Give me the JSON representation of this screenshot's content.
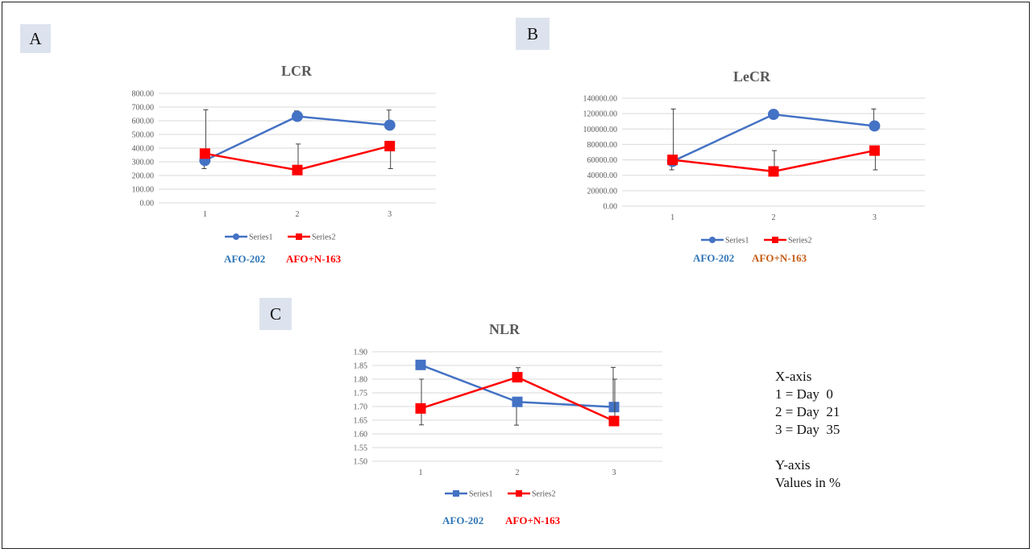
{
  "panels": [
    {
      "label": "A"
    },
    {
      "label": "B"
    },
    {
      "label": "C"
    }
  ],
  "captions": [
    {
      "series1": "AFO-202",
      "series2": "AFO+N-163"
    },
    {
      "series1": "AFO-202",
      "series2": "AFO+N-163"
    },
    {
      "series1": "AFO-202",
      "series2": "AFO+N-163"
    }
  ],
  "colors": {
    "series1": "#4472c4",
    "series2": "#ff0000",
    "caption_blue": "#2e75b6",
    "caption_red": "#ff0000",
    "caption_orange": "#c55a11",
    "grid": "#d9d9d9",
    "text": "#595959",
    "panel_bg": "#dde3ee"
  },
  "notes": {
    "x_title": "X-axis",
    "x1": "1 = Day  0",
    "x2": "2 = Day  21",
    "x3": "3 = Day  35",
    "y_title": "Y-axis",
    "y_desc": "Values in %"
  },
  "chart_data": [
    {
      "type": "line",
      "title": "LCR",
      "categories": [
        "1",
        "2",
        "3"
      ],
      "ylim": [
        0,
        800
      ],
      "yticks": [
        "0.00",
        "100.00",
        "200.00",
        "300.00",
        "400.00",
        "500.00",
        "600.00",
        "700.00",
        "800.00"
      ],
      "grid": true,
      "legend": "bottom",
      "series": [
        {
          "name": "Series1",
          "marker": "circle",
          "values": [
            310,
            632,
            568
          ],
          "err_low": [
            60,
            0,
            0
          ],
          "err_high": [
            0,
            40,
            110
          ]
        },
        {
          "name": "Series2",
          "marker": "square",
          "values": [
            360,
            240,
            415
          ],
          "err_low": [
            0,
            0,
            165
          ],
          "err_high": [
            320,
            190,
            0
          ]
        }
      ]
    },
    {
      "type": "line",
      "title": "LeCR",
      "categories": [
        "1",
        "2",
        "3"
      ],
      "ylim": [
        0,
        140000
      ],
      "yticks": [
        "0.00",
        "20000.00",
        "40000.00",
        "60000.00",
        "80000.00",
        "100000.00",
        "120000.00",
        "140000.00"
      ],
      "grid": true,
      "legend": "bottom",
      "series": [
        {
          "name": "Series1",
          "marker": "circle",
          "values": [
            58000,
            119000,
            104000
          ],
          "err_low": [
            11000,
            0,
            0
          ],
          "err_high": [
            0,
            0,
            22000
          ]
        },
        {
          "name": "Series2",
          "marker": "square",
          "values": [
            60000,
            45000,
            72000
          ],
          "err_low": [
            0,
            0,
            25000
          ],
          "err_high": [
            66000,
            27000,
            0
          ]
        }
      ]
    },
    {
      "type": "line",
      "title": "NLR",
      "categories": [
        "1",
        "2",
        "3"
      ],
      "ylim": [
        1.5,
        1.9
      ],
      "yticks": [
        "1.50",
        "1.55",
        "1.60",
        "1.65",
        "1.70",
        "1.75",
        "1.80",
        "1.85",
        "1.90"
      ],
      "grid": true,
      "legend": "bottom",
      "series": [
        {
          "name": "Series1",
          "marker": "square",
          "values": [
            1.852,
            1.717,
            1.698
          ],
          "err_low": [
            0,
            0.085,
            0
          ],
          "err_high": [
            0,
            0,
            0.145
          ]
        },
        {
          "name": "Series2",
          "marker": "square",
          "values": [
            1.693,
            1.807,
            1.647
          ],
          "err_low": [
            0.06,
            0,
            0
          ],
          "err_high": [
            0.107,
            0.035,
            0.153
          ]
        }
      ]
    }
  ]
}
